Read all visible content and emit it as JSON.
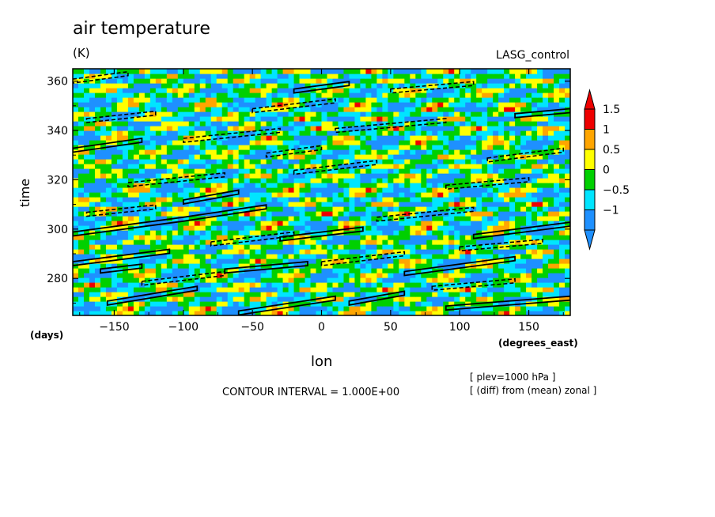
{
  "title": "air temperature",
  "units": "(K)",
  "dataset": "LASG_control",
  "contour_interval": "CONTOUR INTERVAL = 1.000E+00",
  "notes": [
    "[ plev=1000 hPa ]",
    "[ (diff) from (mean) zonal ]"
  ],
  "chart_data": {
    "type": "heatmap",
    "xlabel": "lon",
    "xunits": "(degrees_east)",
    "ylabel": "time",
    "yunits": "(days)",
    "xlim": [
      -180,
      180
    ],
    "ylim": [
      265,
      365
    ],
    "xticks": [
      -150,
      -100,
      -50,
      0,
      50,
      100,
      150
    ],
    "yticks": [
      280,
      300,
      320,
      340,
      360
    ],
    "colorbar": {
      "labels": [
        "1.5",
        "1",
        "0.5",
        "0",
        "-0.5",
        "-1"
      ],
      "levels": [
        -1.5,
        -1,
        -0.5,
        0,
        0.5,
        1,
        1.5
      ],
      "colors": [
        "#1e90ff",
        "#00e5ff",
        "#00d000",
        "#ffff00",
        "#ffa500",
        "#ee0000"
      ],
      "below_color": "#1e90ff",
      "above_color": "#ee0000"
    },
    "contours": {
      "solid": [
        {
          "x": [
            -180,
            -100,
            -40
          ],
          "y": [
            298,
            304,
            309
          ]
        },
        {
          "x": [
            -180,
            -110
          ],
          "y": [
            286,
            291
          ]
        },
        {
          "x": [
            -180,
            -130
          ],
          "y": [
            332,
            336
          ]
        },
        {
          "x": [
            -155,
            -90
          ],
          "y": [
            270,
            276
          ]
        },
        {
          "x": [
            -60,
            10
          ],
          "y": [
            266,
            272
          ]
        },
        {
          "x": [
            -70,
            -10
          ],
          "y": [
            283,
            286
          ]
        },
        {
          "x": [
            -100,
            -60
          ],
          "y": [
            311,
            315
          ]
        },
        {
          "x": [
            -30,
            30
          ],
          "y": [
            296,
            300
          ]
        },
        {
          "x": [
            20,
            60
          ],
          "y": [
            270,
            274
          ]
        },
        {
          "x": [
            60,
            140
          ],
          "y": [
            282,
            288
          ]
        },
        {
          "x": [
            90,
            180
          ],
          "y": [
            268,
            272
          ]
        },
        {
          "x": [
            110,
            180
          ],
          "y": [
            297,
            302
          ]
        },
        {
          "x": [
            140,
            180
          ],
          "y": [
            346,
            348
          ]
        },
        {
          "x": [
            -20,
            20
          ],
          "y": [
            356,
            359
          ]
        },
        {
          "x": [
            -160,
            -130
          ],
          "y": [
            283,
            285
          ]
        }
      ],
      "dashed": [
        {
          "x": [
            -170,
            -120
          ],
          "y": [
            344,
            347
          ]
        },
        {
          "x": [
            -140,
            -70
          ],
          "y": [
            318,
            322
          ]
        },
        {
          "x": [
            -100,
            -30
          ],
          "y": [
            336,
            340
          ]
        },
        {
          "x": [
            -20,
            40
          ],
          "y": [
            323,
            327
          ]
        },
        {
          "x": [
            10,
            90
          ],
          "y": [
            340,
            344
          ]
        },
        {
          "x": [
            -170,
            -120
          ],
          "y": [
            306,
            309
          ]
        },
        {
          "x": [
            -80,
            -20
          ],
          "y": [
            294,
            298
          ]
        },
        {
          "x": [
            40,
            110
          ],
          "y": [
            304,
            308
          ]
        },
        {
          "x": [
            90,
            150
          ],
          "y": [
            317,
            320
          ]
        },
        {
          "x": [
            120,
            175
          ],
          "y": [
            328,
            332
          ]
        },
        {
          "x": [
            -130,
            -70
          ],
          "y": [
            278,
            282
          ]
        },
        {
          "x": [
            0,
            60
          ],
          "y": [
            286,
            290
          ]
        },
        {
          "x": [
            -50,
            10
          ],
          "y": [
            348,
            352
          ]
        },
        {
          "x": [
            50,
            110
          ],
          "y": [
            356,
            359
          ]
        },
        {
          "x": [
            -180,
            -140
          ],
          "y": [
            360,
            363
          ]
        },
        {
          "x": [
            80,
            140
          ],
          "y": [
            276,
            279
          ]
        },
        {
          "x": [
            -40,
            0
          ],
          "y": [
            330,
            333
          ]
        },
        {
          "x": [
            100,
            160
          ],
          "y": [
            292,
            295
          ]
        }
      ]
    }
  }
}
